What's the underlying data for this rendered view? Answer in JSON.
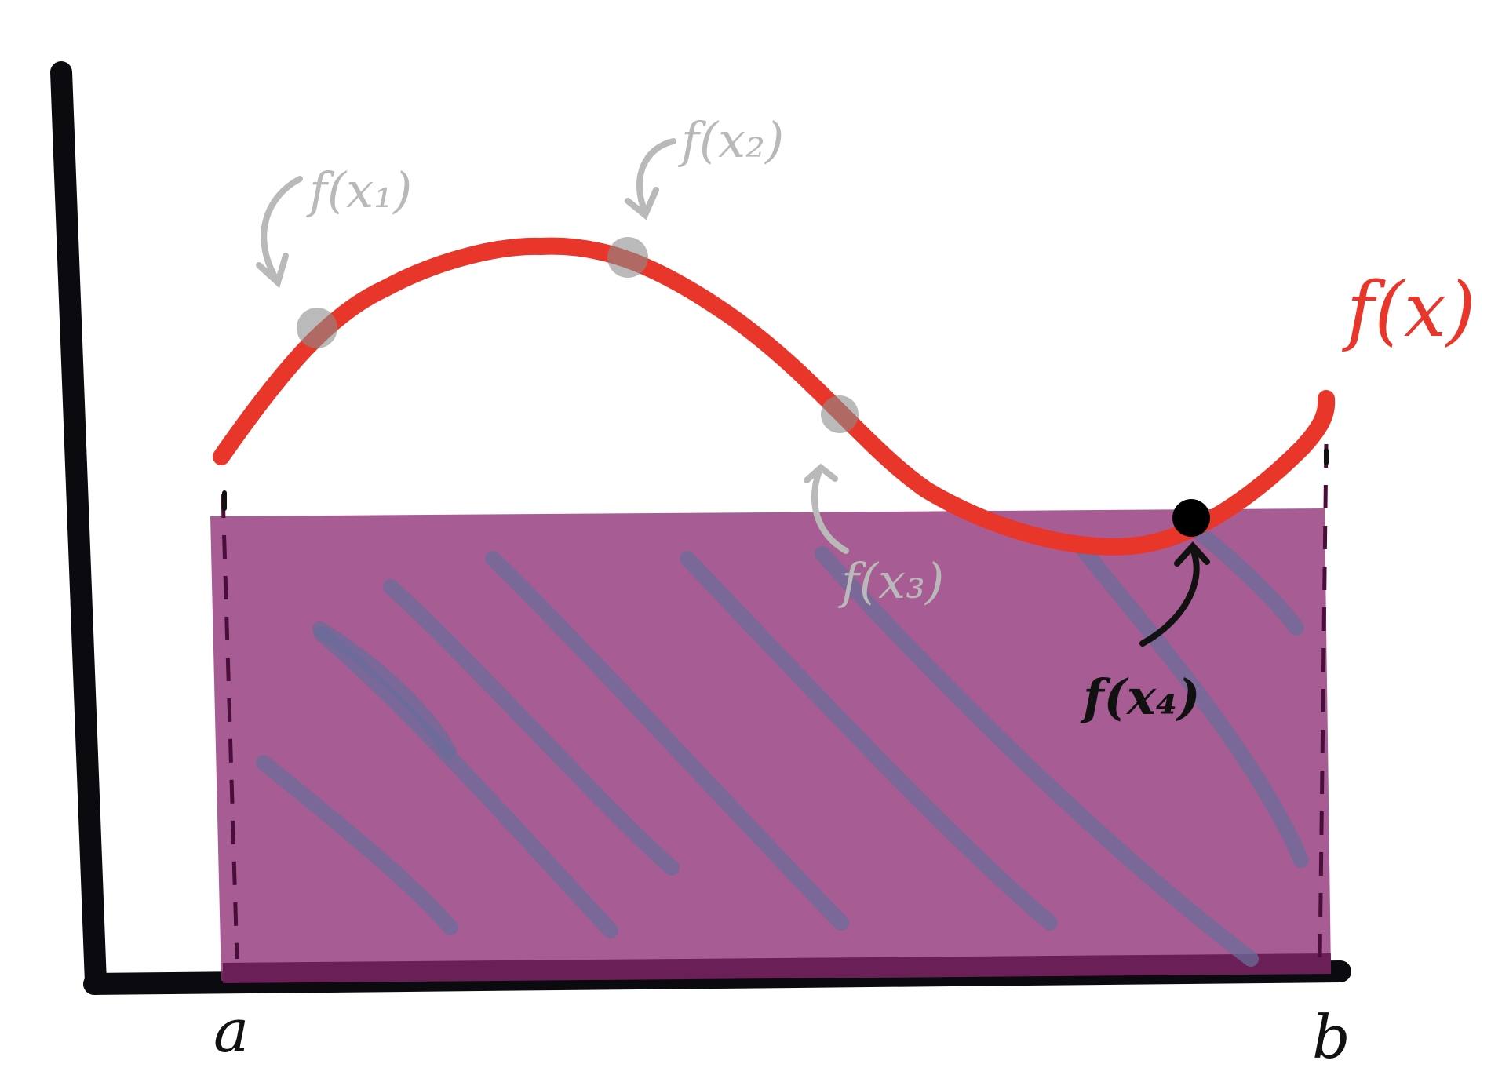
{
  "labels": {
    "curve": "f(x)",
    "a": "a",
    "b": "b",
    "sample1": "f(x₁)",
    "sample2": "f(x₂)",
    "sample3": "f(x₃)",
    "sample4": "f(x₄)"
  },
  "colors": {
    "axis": "#0b0b0f",
    "curve": "#e8362a",
    "rectangle_fill": "#8e2f75",
    "rectangle_base": "#6b1f57",
    "hatch": "#6a6c9a",
    "gray_annotation": "#b9b9b9",
    "highlight_point": "#000000"
  },
  "icons": {
    "annotation_arrow": "curved-arrow-icon"
  }
}
